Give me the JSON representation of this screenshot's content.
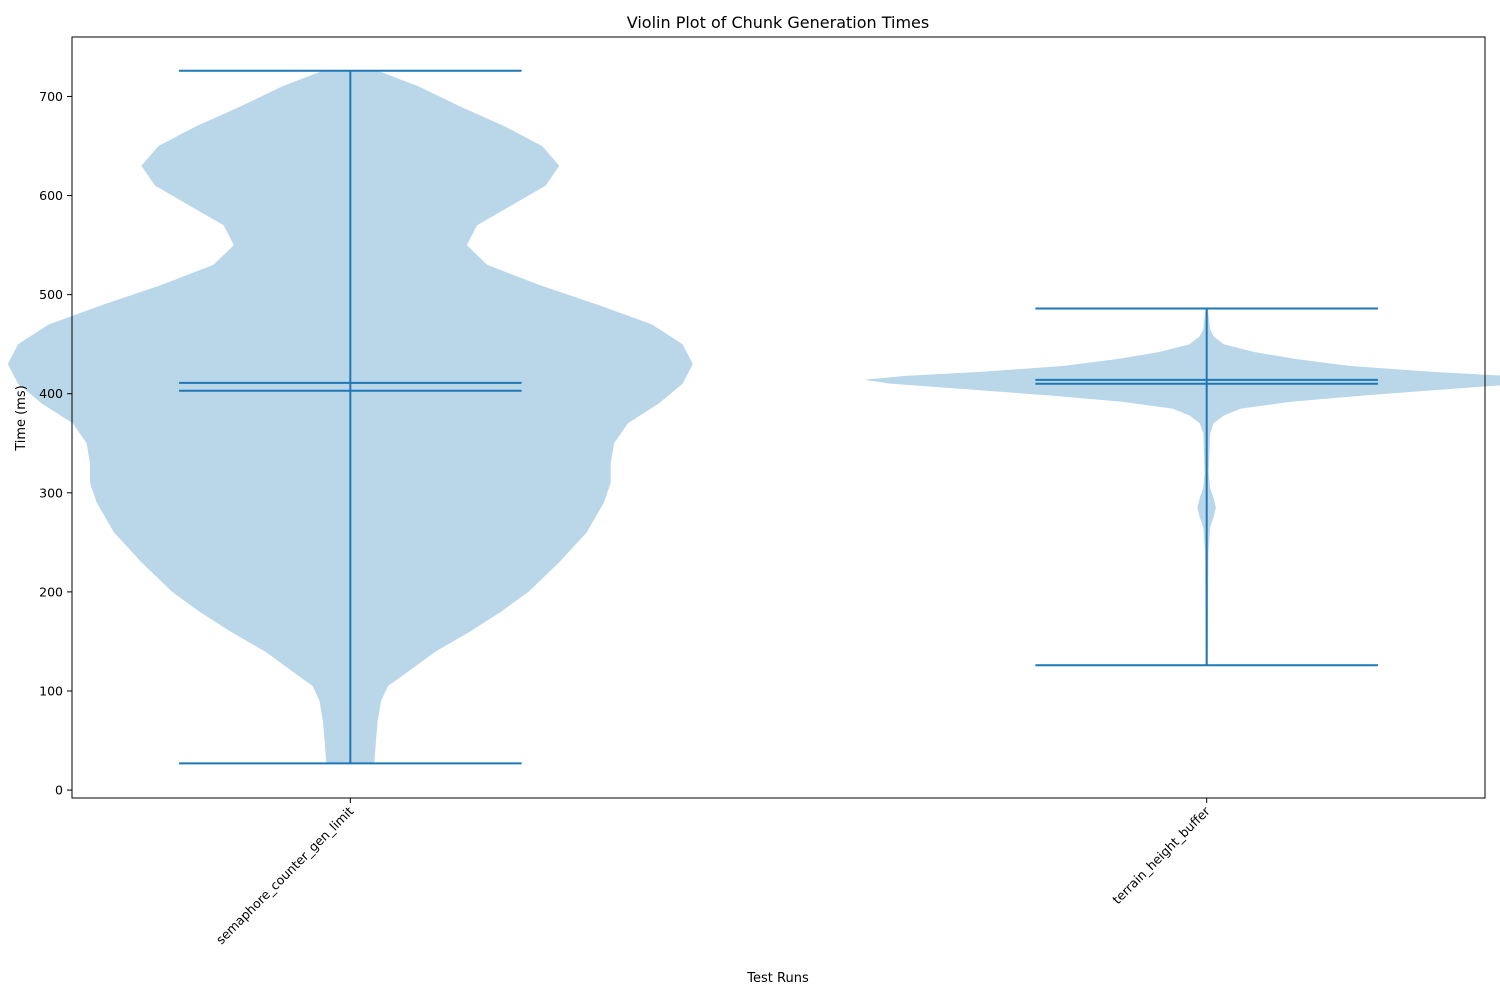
{
  "chart_data": {
    "type": "violin",
    "title": "Violin Plot of Chunk Generation Times",
    "xlabel": "Test Runs",
    "ylabel": "Time (ms)",
    "ylim": [
      -8,
      760
    ],
    "yticks": [
      0,
      100,
      200,
      300,
      400,
      500,
      600,
      700
    ],
    "grid": false,
    "colors": {
      "body": "#bad6e9",
      "lines": "#1f77b4"
    },
    "series": [
      {
        "name": "semaphore_counter_gen_limit",
        "min": 27,
        "max": 726,
        "mean": 411,
        "median": 403,
        "density": [
          [
            27,
            0.07
          ],
          [
            50,
            0.075
          ],
          [
            70,
            0.08
          ],
          [
            90,
            0.09
          ],
          [
            105,
            0.11
          ],
          [
            120,
            0.17
          ],
          [
            140,
            0.25
          ],
          [
            160,
            0.35
          ],
          [
            180,
            0.44
          ],
          [
            200,
            0.52
          ],
          [
            230,
            0.61
          ],
          [
            260,
            0.69
          ],
          [
            290,
            0.74
          ],
          [
            310,
            0.76
          ],
          [
            330,
            0.76
          ],
          [
            350,
            0.77
          ],
          [
            370,
            0.81
          ],
          [
            390,
            0.9
          ],
          [
            410,
            0.97
          ],
          [
            430,
            1.0
          ],
          [
            450,
            0.97
          ],
          [
            470,
            0.88
          ],
          [
            490,
            0.72
          ],
          [
            510,
            0.55
          ],
          [
            530,
            0.4
          ],
          [
            550,
            0.34
          ],
          [
            570,
            0.37
          ],
          [
            590,
            0.47
          ],
          [
            610,
            0.57
          ],
          [
            630,
            0.61
          ],
          [
            650,
            0.56
          ],
          [
            670,
            0.45
          ],
          [
            690,
            0.32
          ],
          [
            710,
            0.2
          ],
          [
            726,
            0.08
          ]
        ]
      },
      {
        "name": "terrain_height_buffer",
        "min": 126,
        "max": 486,
        "mean": 414,
        "median": 410,
        "density": [
          [
            126,
            0.003
          ],
          [
            200,
            0.004
          ],
          [
            240,
            0.005
          ],
          [
            265,
            0.01
          ],
          [
            275,
            0.02
          ],
          [
            285,
            0.027
          ],
          [
            295,
            0.02
          ],
          [
            305,
            0.01
          ],
          [
            320,
            0.006
          ],
          [
            340,
            0.008
          ],
          [
            360,
            0.01
          ],
          [
            370,
            0.02
          ],
          [
            378,
            0.05
          ],
          [
            385,
            0.1
          ],
          [
            392,
            0.25
          ],
          [
            398,
            0.45
          ],
          [
            405,
            0.72
          ],
          [
            410,
            0.92
          ],
          [
            414,
            1.0
          ],
          [
            418,
            0.88
          ],
          [
            422,
            0.66
          ],
          [
            428,
            0.42
          ],
          [
            435,
            0.26
          ],
          [
            442,
            0.14
          ],
          [
            450,
            0.05
          ],
          [
            458,
            0.02
          ],
          [
            465,
            0.01
          ],
          [
            472,
            0.008
          ],
          [
            480,
            0.005
          ],
          [
            486,
            0.003
          ]
        ]
      }
    ]
  }
}
